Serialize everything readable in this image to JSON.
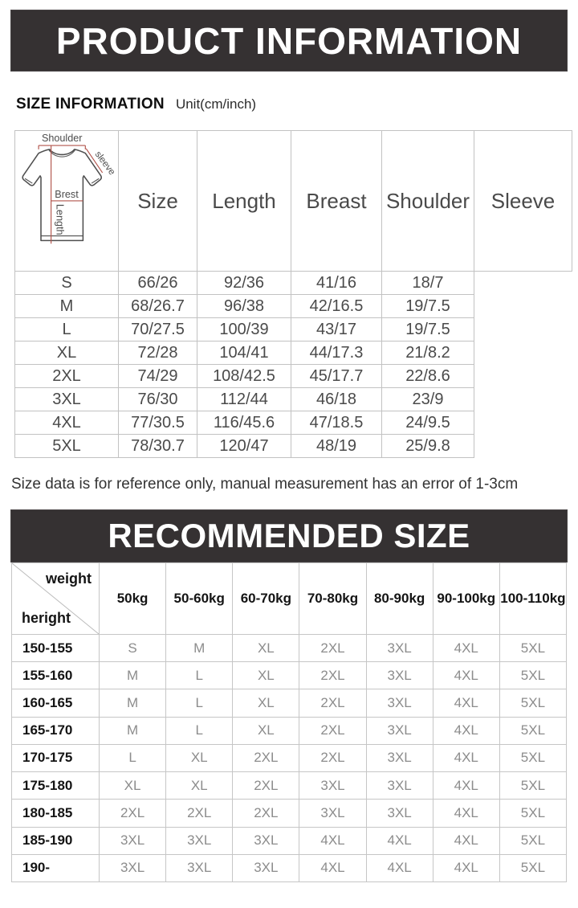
{
  "page": {
    "product_banner": "PRODUCT INFORMATION",
    "recommended_banner": "RECOMMENDED SIZE",
    "size_info_title": "SIZE INFORMATION",
    "size_info_unit": "Unit(cm/inch)",
    "note": "Size data is for reference only, manual measurement has an error of 1-3cm"
  },
  "colors": {
    "banner_background": "#353132",
    "banner_text": "#ffffff",
    "measurement_line": "#b2544c",
    "table_border": "#c2c2c2",
    "value_gray": "#8c8c8c",
    "label_black": "#141414"
  },
  "diagram": {
    "labels": {
      "shoulder": "Shoulder",
      "sleeve": "sleeve",
      "breast": "Brest",
      "length": "Length"
    }
  },
  "size_table": {
    "headers": [
      "Size",
      "Length",
      "Breast",
      "Shoulder",
      "Sleeve"
    ],
    "rows": [
      [
        "S",
        "66/26",
        "92/36",
        "41/16",
        "18/7"
      ],
      [
        "M",
        "68/26.7",
        "96/38",
        "42/16.5",
        "19/7.5"
      ],
      [
        "L",
        "70/27.5",
        "100/39",
        "43/17",
        "19/7.5"
      ],
      [
        "XL",
        "72/28",
        "104/41",
        "44/17.3",
        "21/8.2"
      ],
      [
        "2XL",
        "74/29",
        "108/42.5",
        "45/17.7",
        "22/8.6"
      ],
      [
        "3XL",
        "76/30",
        "112/44",
        "46/18",
        "23/9"
      ],
      [
        "4XL",
        "77/30.5",
        "116/45.6",
        "47/18.5",
        "24/9.5"
      ],
      [
        "5XL",
        "78/30.7",
        "120/47",
        "48/19",
        "25/9.8"
      ]
    ]
  },
  "recommended_table": {
    "corner": {
      "top_right": "weight",
      "bottom_left": "heright"
    },
    "headers": [
      "50kg",
      "50-60kg",
      "60-70kg",
      "70-80kg",
      "80-90kg",
      "90-100kg",
      "100-110kg"
    ],
    "rows": [
      [
        "150-155",
        "S",
        "M",
        "XL",
        "2XL",
        "3XL",
        "4XL",
        "5XL"
      ],
      [
        "155-160",
        "M",
        "L",
        "XL",
        "2XL",
        "3XL",
        "4XL",
        "5XL"
      ],
      [
        "160-165",
        "M",
        "L",
        "XL",
        "2XL",
        "3XL",
        "4XL",
        "5XL"
      ],
      [
        "165-170",
        "M",
        "L",
        "XL",
        "2XL",
        "3XL",
        "4XL",
        "5XL"
      ],
      [
        "170-175",
        "L",
        "XL",
        "2XL",
        "2XL",
        "3XL",
        "4XL",
        "5XL"
      ],
      [
        "175-180",
        "XL",
        "XL",
        "2XL",
        "3XL",
        "3XL",
        "4XL",
        "5XL"
      ],
      [
        "180-185",
        "2XL",
        "2XL",
        "2XL",
        "3XL",
        "3XL",
        "4XL",
        "5XL"
      ],
      [
        "185-190",
        "3XL",
        "3XL",
        "3XL",
        "4XL",
        "4XL",
        "4XL",
        "5XL"
      ],
      [
        "190-",
        "3XL",
        "3XL",
        "3XL",
        "4XL",
        "4XL",
        "4XL",
        "5XL"
      ]
    ]
  }
}
